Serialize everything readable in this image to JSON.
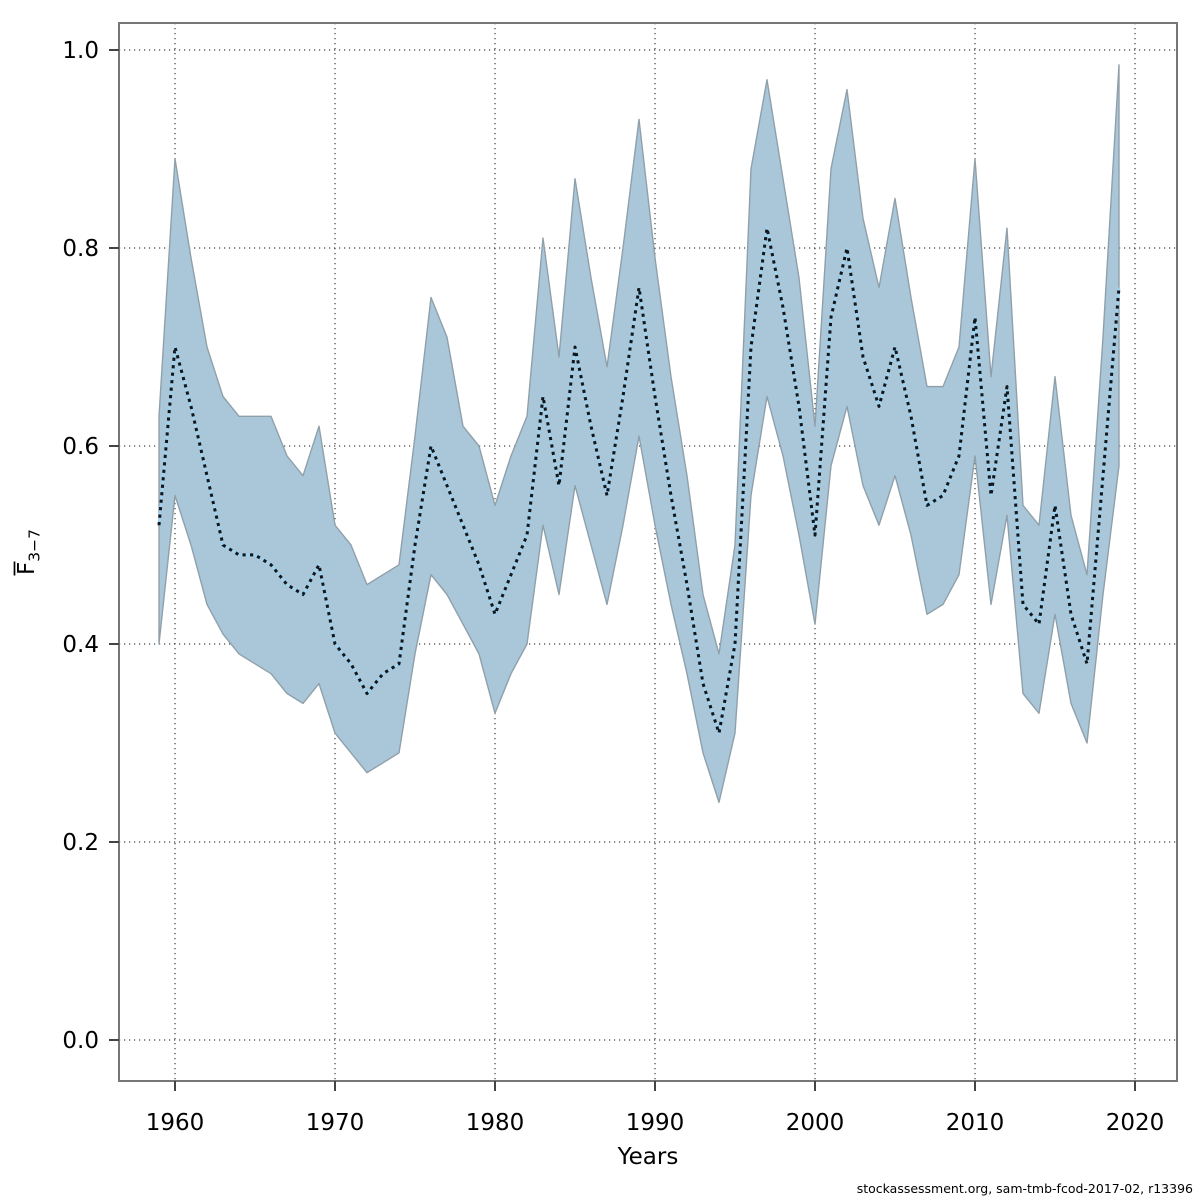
{
  "page": {
    "background": "#ffffff"
  },
  "axes": {
    "x_label": "Years",
    "y_label_main": "F",
    "y_label_sub": "3−7",
    "x_tick_labels": [
      "1960",
      "1970",
      "1980",
      "1990",
      "2000",
      "2010",
      "2020"
    ],
    "y_tick_labels": [
      "0.0",
      "0.2",
      "0.4",
      "0.6",
      "0.8",
      "1.0"
    ]
  },
  "footer": {
    "text": "stockassessment.org, sam-tmb-fcod-2017-02, r13396"
  },
  "chart_data": {
    "type": "line",
    "title": "",
    "xlabel": "Years",
    "ylabel": "Fbar(3-7)",
    "legend_position": "none",
    "grid": "dotted",
    "xlim": [
      1956.5,
      2023.6
    ],
    "ylim": [
      -0.04,
      1.03
    ],
    "x_ticks": [
      1960,
      1970,
      1980,
      1990,
      2000,
      2010,
      2020
    ],
    "y_ticks": [
      0.0,
      0.2,
      0.4,
      0.6,
      0.8,
      1.0
    ],
    "x": [
      1959,
      1960,
      1961,
      1962,
      1963,
      1964,
      1965,
      1966,
      1967,
      1968,
      1969,
      1970,
      1971,
      1972,
      1973,
      1974,
      1975,
      1976,
      1977,
      1978,
      1979,
      1980,
      1981,
      1982,
      1983,
      1984,
      1985,
      1986,
      1987,
      1988,
      1989,
      1990,
      1991,
      1992,
      1993,
      1994,
      1995,
      1996,
      1997,
      1998,
      1999,
      2000,
      2001,
      2002,
      2003,
      2004,
      2005,
      2006,
      2007,
      2008,
      2009,
      2010,
      2011,
      2012,
      2013,
      2014,
      2015,
      2016,
      2017,
      2018,
      2019
    ],
    "series": [
      {
        "name": "Fbar(3-7) estimate",
        "style": "dotted-line",
        "values": [
          0.52,
          0.7,
          0.64,
          0.57,
          0.5,
          0.49,
          0.49,
          0.48,
          0.46,
          0.45,
          0.48,
          0.4,
          0.38,
          0.35,
          0.37,
          0.38,
          0.5,
          0.6,
          0.56,
          0.52,
          0.48,
          0.43,
          0.47,
          0.51,
          0.65,
          0.56,
          0.7,
          0.62,
          0.55,
          0.65,
          0.76,
          0.65,
          0.55,
          0.46,
          0.36,
          0.31,
          0.4,
          0.7,
          0.82,
          0.74,
          0.64,
          0.51,
          0.73,
          0.8,
          0.69,
          0.64,
          0.7,
          0.63,
          0.54,
          0.55,
          0.59,
          0.73,
          0.55,
          0.66,
          0.44,
          0.42,
          0.54,
          0.43,
          0.38,
          0.57,
          0.76
        ]
      },
      {
        "name": "CI lower",
        "style": "band-lower",
        "values": [
          0.4,
          0.55,
          0.5,
          0.44,
          0.41,
          0.39,
          0.38,
          0.37,
          0.35,
          0.34,
          0.36,
          0.31,
          0.29,
          0.27,
          0.28,
          0.29,
          0.39,
          0.47,
          0.45,
          0.42,
          0.39,
          0.33,
          0.37,
          0.4,
          0.52,
          0.45,
          0.56,
          0.5,
          0.44,
          0.52,
          0.61,
          0.52,
          0.44,
          0.37,
          0.29,
          0.24,
          0.31,
          0.55,
          0.65,
          0.59,
          0.51,
          0.42,
          0.58,
          0.64,
          0.56,
          0.52,
          0.57,
          0.51,
          0.43,
          0.44,
          0.47,
          0.59,
          0.44,
          0.53,
          0.35,
          0.33,
          0.43,
          0.34,
          0.3,
          0.45,
          0.58
        ]
      },
      {
        "name": "CI upper",
        "style": "band-upper",
        "values": [
          0.63,
          0.89,
          0.79,
          0.7,
          0.65,
          0.63,
          0.63,
          0.63,
          0.59,
          0.57,
          0.62,
          0.52,
          0.5,
          0.46,
          0.47,
          0.48,
          0.61,
          0.75,
          0.71,
          0.62,
          0.6,
          0.54,
          0.59,
          0.63,
          0.81,
          0.69,
          0.87,
          0.77,
          0.68,
          0.8,
          0.93,
          0.79,
          0.67,
          0.57,
          0.45,
          0.39,
          0.5,
          0.88,
          0.97,
          0.87,
          0.77,
          0.62,
          0.88,
          0.96,
          0.83,
          0.76,
          0.85,
          0.75,
          0.66,
          0.66,
          0.7,
          0.89,
          0.67,
          0.82,
          0.54,
          0.52,
          0.67,
          0.53,
          0.47,
          0.71,
          0.985
        ]
      }
    ],
    "colors": {
      "band_fill": "#a9c7d8",
      "band_border": "#90a0ab",
      "line_underlay": "#9ed2f0",
      "line_dots": "#10161c",
      "axis_box": "#777777",
      "ticks": "#444444",
      "gridlines": "#404040",
      "text": "#000000"
    }
  }
}
